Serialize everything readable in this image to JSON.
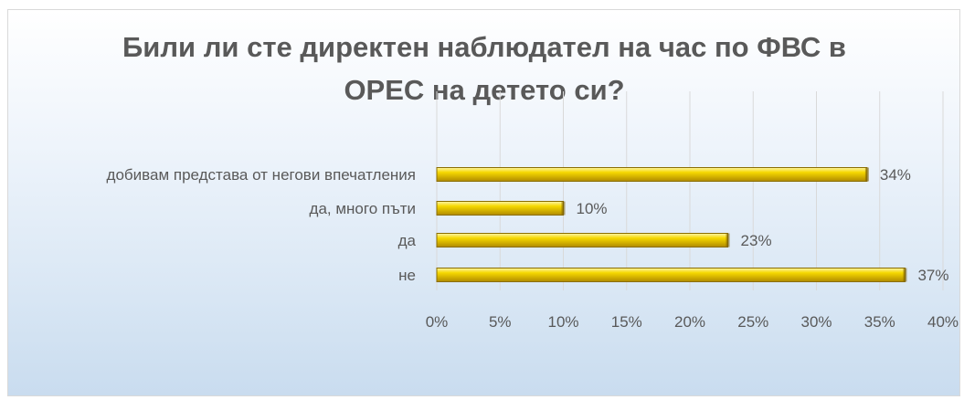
{
  "chart_data": {
    "type": "bar",
    "orientation": "horizontal",
    "title": "Били ли сте директен наблюдател на час по ФВС в ОРЕС на детето си?",
    "categories": [
      "добивам представа от негови впечатления",
      "да, много пъти",
      "да",
      "не"
    ],
    "values": [
      34,
      10,
      23,
      37
    ],
    "value_labels": [
      "34%",
      "10%",
      "23%",
      "37%"
    ],
    "xlim": [
      0,
      40
    ],
    "x_ticks": [
      0,
      5,
      10,
      15,
      20,
      25,
      30,
      35,
      40
    ],
    "x_tick_labels": [
      "0%",
      "5%",
      "10%",
      "15%",
      "20%",
      "25%",
      "30%",
      "35%",
      "40%"
    ],
    "grid": true,
    "legend": "none",
    "bar_color": "#f0c800",
    "bar_edge_color": "#8a6d00"
  }
}
